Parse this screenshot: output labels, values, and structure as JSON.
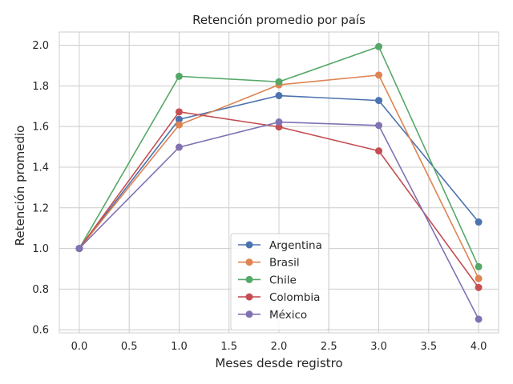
{
  "chart_data": {
    "type": "line",
    "title": "Retención promedio por país",
    "xlabel": "Meses desde registro",
    "ylabel": "Retención promedio",
    "x": [
      0,
      1,
      2,
      3,
      4
    ],
    "xlim": [
      -0.2,
      4.2
    ],
    "ylim": [
      0.585,
      2.065
    ],
    "xticks": [
      0.0,
      0.5,
      1.0,
      1.5,
      2.0,
      2.5,
      3.0,
      3.5,
      4.0
    ],
    "xtick_labels": [
      "0.0",
      "0.5",
      "1.0",
      "1.5",
      "2.0",
      "2.5",
      "3.0",
      "3.5",
      "4.0"
    ],
    "yticks": [
      0.6,
      0.8,
      1.0,
      1.2,
      1.4,
      1.6,
      1.8,
      2.0
    ],
    "ytick_labels": [
      "0.6",
      "0.8",
      "1.0",
      "1.2",
      "1.4",
      "1.6",
      "1.8",
      "2.0"
    ],
    "grid": true,
    "legend_position": "lower-center",
    "series": [
      {
        "name": "Argentina",
        "color": "#4c72b0",
        "values": [
          1.0,
          1.635,
          1.752,
          1.728,
          1.13
        ]
      },
      {
        "name": "Brasil",
        "color": "#dd8452",
        "values": [
          1.0,
          1.608,
          1.805,
          1.853,
          0.852
        ]
      },
      {
        "name": "Chile",
        "color": "#55a868",
        "values": [
          1.0,
          1.847,
          1.82,
          1.993,
          0.91
        ]
      },
      {
        "name": "Colombia",
        "color": "#c44e52",
        "values": [
          1.0,
          1.672,
          1.598,
          1.48,
          0.808
        ]
      },
      {
        "name": "México",
        "color": "#8172b3",
        "values": [
          1.0,
          1.498,
          1.622,
          1.605,
          0.652
        ]
      }
    ]
  }
}
